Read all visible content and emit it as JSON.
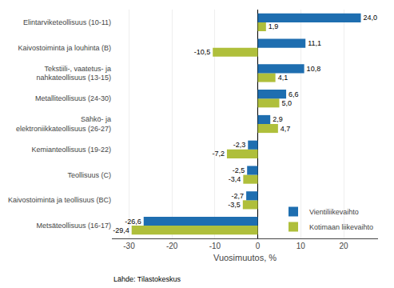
{
  "chart_data": {
    "type": "bar",
    "orientation": "horizontal",
    "categories": [
      "Metsäteollisuus (16-17)",
      "Kaivostoiminta ja teollisuus (BC)",
      "Teollisuus (C)",
      "Kemianteollisuus (19-22)",
      "Sähkö- ja\nelektroniikkateollisuus (26-27)",
      "Metalliteollisuus (24-30)",
      "Tekstiili-, vaatetus- ja\nnahkateollisuus (13-15)",
      "Kaivostoiminta ja louhinta (B)",
      "Elintarviketeollisuus (10-11)"
    ],
    "series": [
      {
        "name": "Vientiliikevaihto",
        "color": "#1E6EB0",
        "values": [
          -26.6,
          -2.7,
          -2.5,
          -2.3,
          2.9,
          6.6,
          10.8,
          11.1,
          24.0
        ],
        "value_labels": [
          "-26,6",
          "-2,7",
          "-2,5",
          "-2,3",
          "2,9",
          "6,6",
          "10,8",
          "11,1",
          "24,0"
        ]
      },
      {
        "name": "Kotimaan liikevaihto",
        "color": "#AFBF3B",
        "values": [
          -29.4,
          -3.5,
          -3.4,
          -7.2,
          4.7,
          5.0,
          4.1,
          -10.5,
          1.9
        ],
        "value_labels": [
          "-29,4",
          "-3,5",
          "-3,4",
          "-7,2",
          "4,7",
          "5,0",
          "4,1",
          "-10,5",
          "1,9"
        ]
      }
    ],
    "xlabel": "Vuosimuutos, %",
    "xlim": [
      -34,
      28
    ],
    "xticks": [
      -30,
      -20,
      -10,
      0,
      10,
      20
    ],
    "grid": true,
    "legend": "lower right",
    "data_labels": true,
    "annotations": [
      "Lähde: Tilastokeskus"
    ]
  }
}
